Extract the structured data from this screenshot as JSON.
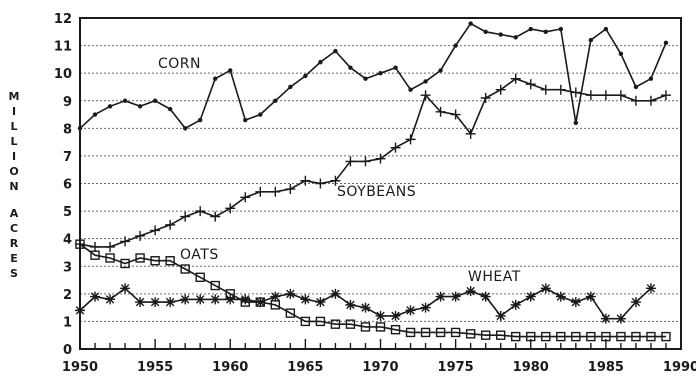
{
  "chart_data": {
    "type": "line",
    "ylabel": "MILLION ACRES",
    "xlabel": "",
    "title": "",
    "xlim": [
      1950,
      1990
    ],
    "ylim": [
      0,
      12
    ],
    "x_ticks": [
      "1950",
      "1955",
      "1960",
      "1965",
      "1970",
      "1975",
      "1980",
      "1985",
      "1990"
    ],
    "y_ticks": [
      "0",
      "1",
      "2",
      "3",
      "4",
      "5",
      "6",
      "7",
      "8",
      "9",
      "10",
      "11",
      "12"
    ],
    "grid": "horizontal dashed",
    "x": [
      1950,
      1951,
      1952,
      1953,
      1954,
      1955,
      1956,
      1957,
      1958,
      1959,
      1960,
      1961,
      1962,
      1963,
      1964,
      1965,
      1966,
      1967,
      1968,
      1969,
      1970,
      1971,
      1972,
      1973,
      1974,
      1975,
      1976,
      1977,
      1978,
      1979,
      1980,
      1981,
      1982,
      1983,
      1984,
      1985,
      1986,
      1987,
      1988,
      1989
    ],
    "series": [
      {
        "name": "CORN",
        "marker": "dot",
        "values": [
          8.0,
          8.5,
          8.8,
          9.0,
          8.8,
          9.0,
          8.7,
          8.0,
          8.3,
          9.8,
          10.1,
          8.3,
          8.5,
          9.0,
          9.5,
          9.9,
          10.4,
          10.8,
          10.2,
          9.8,
          10.0,
          10.2,
          9.4,
          9.7,
          10.1,
          11.0,
          11.8,
          11.5,
          11.4,
          11.3,
          11.6,
          11.5,
          11.6,
          8.2,
          11.2,
          11.6,
          10.7,
          9.5,
          9.8,
          11.1
        ]
      },
      {
        "name": "SOYBEANS",
        "marker": "plus",
        "values": [
          3.8,
          3.7,
          3.7,
          3.9,
          4.1,
          4.3,
          4.5,
          4.8,
          5.0,
          4.8,
          5.1,
          5.5,
          5.7,
          5.7,
          5.8,
          6.1,
          6.0,
          6.1,
          6.8,
          6.8,
          6.9,
          7.3,
          7.6,
          9.2,
          8.6,
          8.5,
          7.8,
          9.1,
          9.4,
          9.8,
          9.6,
          9.4,
          9.4,
          9.3,
          9.2,
          9.2,
          9.2,
          9.0,
          9.0,
          9.2
        ]
      },
      {
        "name": "OATS",
        "marker": "square",
        "values": [
          3.8,
          3.4,
          3.3,
          3.1,
          3.3,
          3.2,
          3.2,
          2.9,
          2.6,
          2.3,
          2.0,
          1.7,
          1.7,
          1.6,
          1.3,
          1.0,
          1.0,
          0.9,
          0.9,
          0.8,
          0.8,
          0.7,
          0.6,
          0.6,
          0.6,
          0.6,
          0.55,
          0.5,
          0.5,
          0.45,
          0.45,
          0.45,
          0.45,
          0.45,
          0.45,
          0.45,
          0.45,
          0.45,
          0.45,
          0.45
        ]
      },
      {
        "name": "WHEAT",
        "marker": "star",
        "values": [
          1.4,
          1.9,
          1.8,
          2.2,
          1.7,
          1.7,
          1.7,
          1.8,
          1.8,
          1.8,
          1.8,
          1.8,
          1.7,
          1.9,
          2.0,
          1.8,
          1.7,
          2.0,
          1.6,
          1.5,
          1.2,
          1.2,
          1.4,
          1.5,
          1.9,
          1.9,
          2.1,
          1.9,
          1.2,
          1.6,
          1.9,
          2.2,
          1.9,
          1.7,
          1.9,
          1.1,
          1.1,
          1.7,
          2.2,
          null
        ]
      }
    ]
  }
}
